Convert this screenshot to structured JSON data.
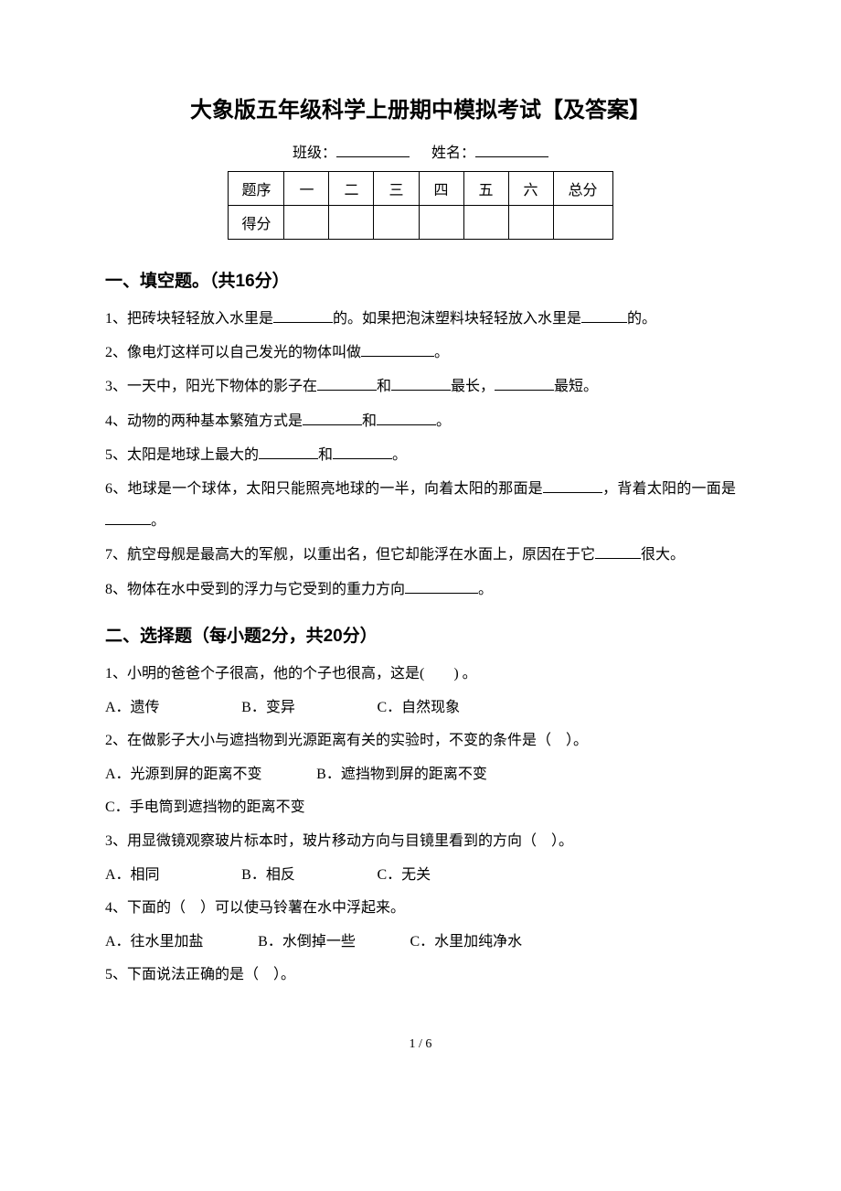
{
  "title": "大象版五年级科学上册期中模拟考试【及答案】",
  "student_info": {
    "class_label": "班级：",
    "name_label": "姓名："
  },
  "score_table": {
    "headers": [
      "题序",
      "一",
      "二",
      "三",
      "四",
      "五",
      "六",
      "总分"
    ],
    "score_label": "得分"
  },
  "sections": {
    "section1": {
      "heading": "一、填空题。（共16分）",
      "questions": {
        "q1_p1": "1、把砖块轻轻放入水里是",
        "q1_p2": "的。如果把泡沫塑料块轻轻放入水里是",
        "q1_p3": "的。",
        "q2_p1": "2、像电灯这样可以自己发光的物体叫做",
        "q2_p2": "。",
        "q3_p1": "3、一天中，阳光下物体的影子在",
        "q3_p2": "和",
        "q3_p3": "最长，",
        "q3_p4": "最短。",
        "q4_p1": "4、动物的两种基本繁殖方式是",
        "q4_p2": "和",
        "q4_p3": "。",
        "q5_p1": "5、太阳是地球上最大的",
        "q5_p2": "和",
        "q5_p3": "。",
        "q6_p1": "6、地球是一个球体，太阳只能照亮地球的一半，向着太阳的那面是",
        "q6_p2": "，背着太阳的一面是",
        "q6_p3": "。",
        "q7_p1": "7、航空母舰是最高大的军舰，以重出名，但它却能浮在水面上，原因在于它",
        "q7_p2": "很大。",
        "q8_p1": "8、物体在水中受到的浮力与它受到的重力方向",
        "q8_p2": "。"
      }
    },
    "section2": {
      "heading": "二、选择题（每小题2分，共20分）",
      "questions": {
        "q1": "1、小明的爸爸个子很高，他的个子也很高，这是(　　) 。",
        "q1_opts": {
          "a": "A．遗传",
          "b": "B．变异",
          "c": "C．自然现象"
        },
        "q2": "2、在做影子大小与遮挡物到光源距离有关的实验时，不变的条件是（　）。",
        "q2_opts": {
          "a": "A．光源到屏的距离不变",
          "b": "B．遮挡物到屏的距离不变",
          "c": "C．手电筒到遮挡物的距离不变"
        },
        "q3": "3、用显微镜观察玻片标本时，玻片移动方向与目镜里看到的方向（　）。",
        "q3_opts": {
          "a": "A．相同",
          "b": "B．相反",
          "c": "C．无关"
        },
        "q4": "4、下面的（　）可以使马铃薯在水中浮起来。",
        "q4_opts": {
          "a": "A．往水里加盐",
          "b": "B．水倒掉一些",
          "c": "C．水里加纯净水"
        },
        "q5": "5、下面说法正确的是（　）。"
      }
    }
  },
  "page_number": "1 / 6"
}
